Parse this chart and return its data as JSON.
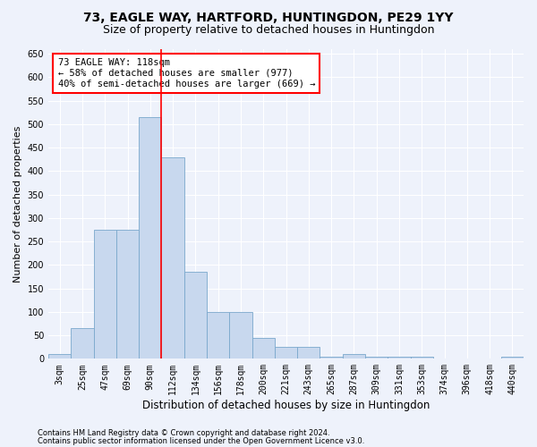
{
  "title": "73, EAGLE WAY, HARTFORD, HUNTINGDON, PE29 1YY",
  "subtitle": "Size of property relative to detached houses in Huntingdon",
  "xlabel": "Distribution of detached houses by size in Huntingdon",
  "ylabel": "Number of detached properties",
  "footer_line1": "Contains HM Land Registry data © Crown copyright and database right 2024.",
  "footer_line2": "Contains public sector information licensed under the Open Government Licence v3.0.",
  "categories": [
    "3sqm",
    "25sqm",
    "47sqm",
    "69sqm",
    "90sqm",
    "112sqm",
    "134sqm",
    "156sqm",
    "178sqm",
    "200sqm",
    "221sqm",
    "243sqm",
    "265sqm",
    "287sqm",
    "309sqm",
    "331sqm",
    "353sqm",
    "374sqm",
    "396sqm",
    "418sqm",
    "440sqm"
  ],
  "values": [
    10,
    65,
    275,
    275,
    515,
    430,
    185,
    100,
    100,
    45,
    25,
    25,
    5,
    10,
    5,
    5,
    5,
    0,
    0,
    0,
    5
  ],
  "bar_color": "#c8d8ee",
  "bar_edge_color": "#7aa8cc",
  "ylim": [
    0,
    660
  ],
  "yticks": [
    0,
    50,
    100,
    150,
    200,
    250,
    300,
    350,
    400,
    450,
    500,
    550,
    600,
    650
  ],
  "property_label": "73 EAGLE WAY: 118sqm",
  "annotation_line1": "← 58% of detached houses are smaller (977)",
  "annotation_line2": "40% of semi-detached houses are larger (669) →",
  "vline_bin_index": 4.5,
  "background_color": "#eef2fb",
  "grid_color": "#ffffff",
  "fig_bg_color": "#eef2fb",
  "title_fontsize": 10,
  "subtitle_fontsize": 9,
  "tick_fontsize": 7,
  "ylabel_fontsize": 8,
  "xlabel_fontsize": 8.5,
  "footer_fontsize": 6
}
